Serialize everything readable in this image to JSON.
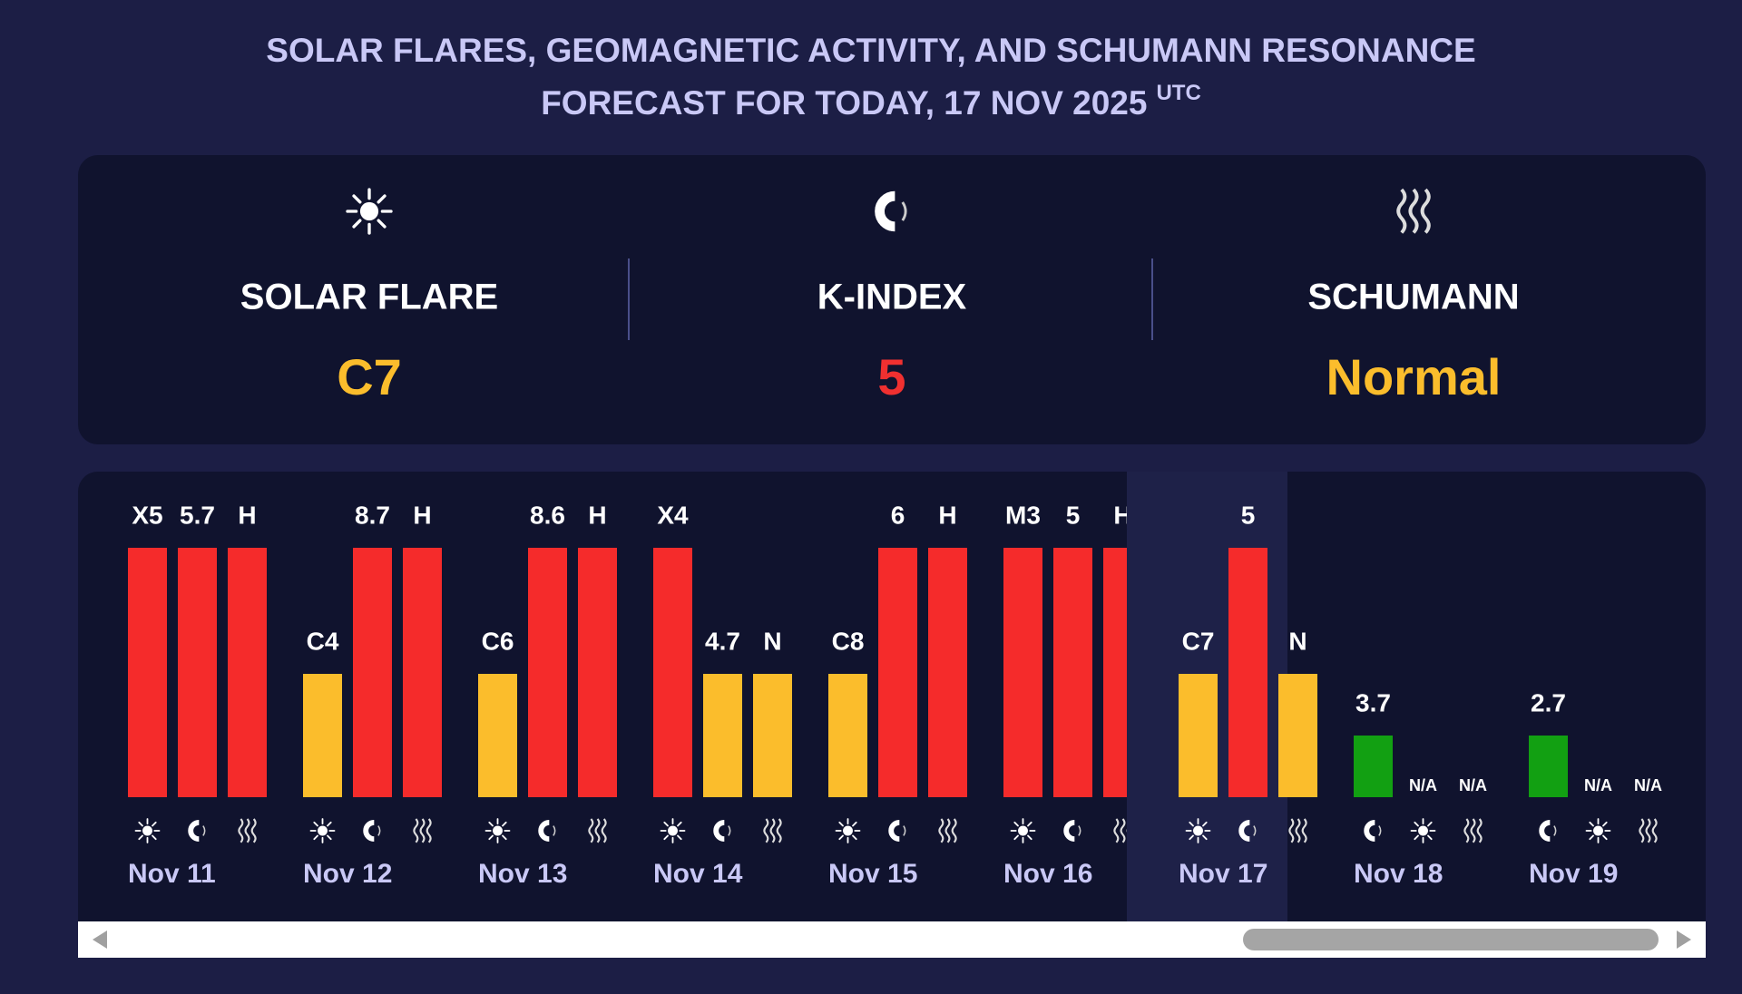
{
  "header": {
    "title_line1": "SOLAR FLARES, GEOMAGNETIC ACTIVITY, AND SCHUMANN RESONANCE",
    "title_line2": "FORECAST FOR TODAY, 17 NOV 2025",
    "title_suffix": "UTC"
  },
  "summary": [
    {
      "icon": "sun",
      "label": "SOLAR FLARE",
      "value": "C7",
      "color": "#fbbd2c"
    },
    {
      "icon": "magnet",
      "label": "K-INDEX",
      "value": "5",
      "color": "#f03030"
    },
    {
      "icon": "waves",
      "label": "SCHUMANN",
      "value": "Normal",
      "color": "#fbbd2c"
    }
  ],
  "days": [
    {
      "date": "Nov 11",
      "bars": [
        {
          "icon": "sun",
          "label": "X5",
          "color": "#f52b2b"
        },
        {
          "icon": "magnet",
          "label": "5.7",
          "color": "#f52b2b"
        },
        {
          "icon": "waves",
          "label": "H",
          "color": "#f52b2b"
        }
      ]
    },
    {
      "date": "Nov 12",
      "bars": [
        {
          "icon": "sun",
          "label": "C4",
          "color": "#fbbd2c"
        },
        {
          "icon": "magnet",
          "label": "8.7",
          "color": "#f52b2b"
        },
        {
          "icon": "waves",
          "label": "H",
          "color": "#f52b2b"
        }
      ]
    },
    {
      "date": "Nov 13",
      "bars": [
        {
          "icon": "sun",
          "label": "C6",
          "color": "#fbbd2c"
        },
        {
          "icon": "magnet",
          "label": "8.6",
          "color": "#f52b2b"
        },
        {
          "icon": "waves",
          "label": "H",
          "color": "#f52b2b"
        }
      ]
    },
    {
      "date": "Nov 14",
      "bars": [
        {
          "icon": "sun",
          "label": "X4",
          "color": "#f52b2b"
        },
        {
          "icon": "magnet",
          "label": "4.7",
          "color": "#fbbd2c"
        },
        {
          "icon": "waves",
          "label": "N",
          "color": "#fbbd2c"
        }
      ]
    },
    {
      "date": "Nov 15",
      "bars": [
        {
          "icon": "sun",
          "label": "C8",
          "color": "#fbbd2c"
        },
        {
          "icon": "magnet",
          "label": "6",
          "color": "#f52b2b"
        },
        {
          "icon": "waves",
          "label": "H",
          "color": "#f52b2b"
        }
      ]
    },
    {
      "date": "Nov 16",
      "bars": [
        {
          "icon": "sun",
          "label": "M3",
          "color": "#f52b2b"
        },
        {
          "icon": "magnet",
          "label": "5",
          "color": "#f52b2b"
        },
        {
          "icon": "waves",
          "label": "H",
          "color": "#f52b2b"
        }
      ]
    },
    {
      "date": "Nov 17",
      "today": true,
      "bars": [
        {
          "icon": "sun",
          "label": "C7",
          "color": "#fbbd2c"
        },
        {
          "icon": "magnet",
          "label": "5",
          "color": "#f52b2b"
        },
        {
          "icon": "waves",
          "label": "N",
          "color": "#fbbd2c"
        }
      ]
    },
    {
      "date": "Nov 18",
      "bars": [
        {
          "icon": "magnet",
          "label": "3.7",
          "color": "#12a012"
        },
        {
          "icon": "sun",
          "label": "N/A",
          "color": null
        },
        {
          "icon": "waves",
          "label": "N/A",
          "color": null
        }
      ]
    },
    {
      "date": "Nov 19",
      "bars": [
        {
          "icon": "magnet",
          "label": "2.7",
          "color": "#12a012"
        },
        {
          "icon": "sun",
          "label": "N/A",
          "color": null
        },
        {
          "icon": "waves",
          "label": "N/A",
          "color": null
        }
      ]
    }
  ]
}
